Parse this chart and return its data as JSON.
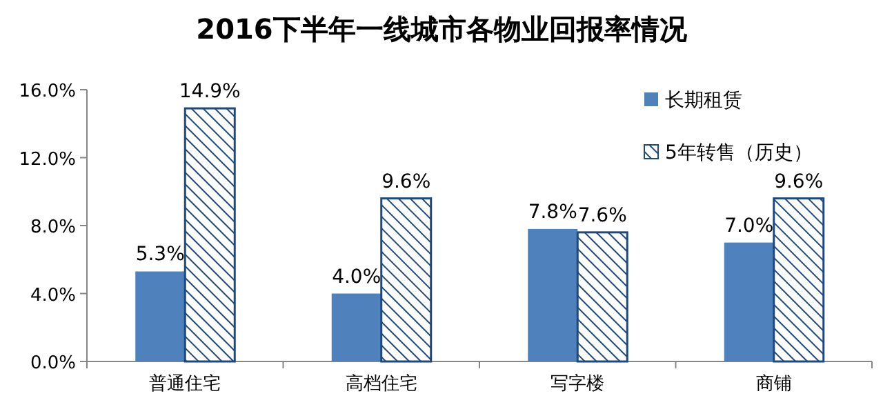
{
  "chart_data": {
    "type": "bar",
    "title": "2016下半年一线城市各物业回报率情况",
    "categories": [
      "普通住宅",
      "高档住宅",
      "写字楼",
      "商铺"
    ],
    "series": [
      {
        "name": "长期租赁",
        "color": "#4f81bd",
        "values": [
          5.3,
          4.0,
          7.8,
          7.0
        ],
        "value_labels": [
          "5.3%",
          "4.0%",
          "7.8%",
          "7.0%"
        ]
      },
      {
        "name": "5年转售（历史）",
        "color": "#1f497d",
        "values": [
          14.9,
          9.6,
          7.6,
          9.6
        ],
        "value_labels": [
          "14.9%",
          "9.6%",
          "7.6%",
          "9.6%"
        ]
      }
    ],
    "ylim": [
      0,
      16
    ],
    "yticks": [
      {
        "value": 0,
        "label": "0.0%"
      },
      {
        "value": 4,
        "label": "4.0%"
      },
      {
        "value": 8,
        "label": "8.0%"
      },
      {
        "value": 12,
        "label": "12.0%"
      },
      {
        "value": 16,
        "label": "16.0%"
      }
    ],
    "legend": "top right"
  }
}
